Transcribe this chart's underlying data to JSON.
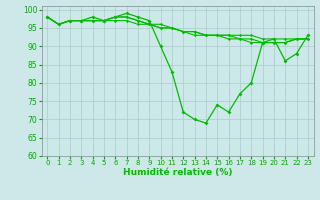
{
  "xlabel": "Humidité relative (%)",
  "background_color": "#cce8e8",
  "grid_color": "#aacccc",
  "line_color": "#00bb00",
  "xlim": [
    -0.5,
    23.5
  ],
  "ylim": [
    60,
    101
  ],
  "yticks": [
    60,
    65,
    70,
    75,
    80,
    85,
    90,
    95,
    100
  ],
  "xticks": [
    0,
    1,
    2,
    3,
    4,
    5,
    6,
    7,
    8,
    9,
    10,
    11,
    12,
    13,
    14,
    15,
    16,
    17,
    18,
    19,
    20,
    21,
    22,
    23
  ],
  "series": [
    [
      98,
      96,
      97,
      97,
      98,
      97,
      98,
      99,
      98,
      97,
      90,
      83,
      72,
      70,
      69,
      74,
      72,
      77,
      80,
      91,
      92,
      86,
      88,
      93
    ],
    [
      98,
      96,
      97,
      97,
      97,
      97,
      97,
      97,
      96,
      96,
      95,
      95,
      94,
      94,
      93,
      93,
      92,
      92,
      91,
      91,
      91,
      91,
      92,
      92
    ],
    [
      98,
      96,
      97,
      97,
      97,
      97,
      98,
      98,
      97,
      96,
      95,
      95,
      94,
      94,
      93,
      93,
      93,
      92,
      92,
      91,
      91,
      91,
      92,
      92
    ],
    [
      98,
      96,
      97,
      97,
      97,
      97,
      98,
      98,
      97,
      96,
      96,
      95,
      94,
      93,
      93,
      93,
      93,
      93,
      93,
      92,
      92,
      92,
      92,
      92
    ]
  ]
}
